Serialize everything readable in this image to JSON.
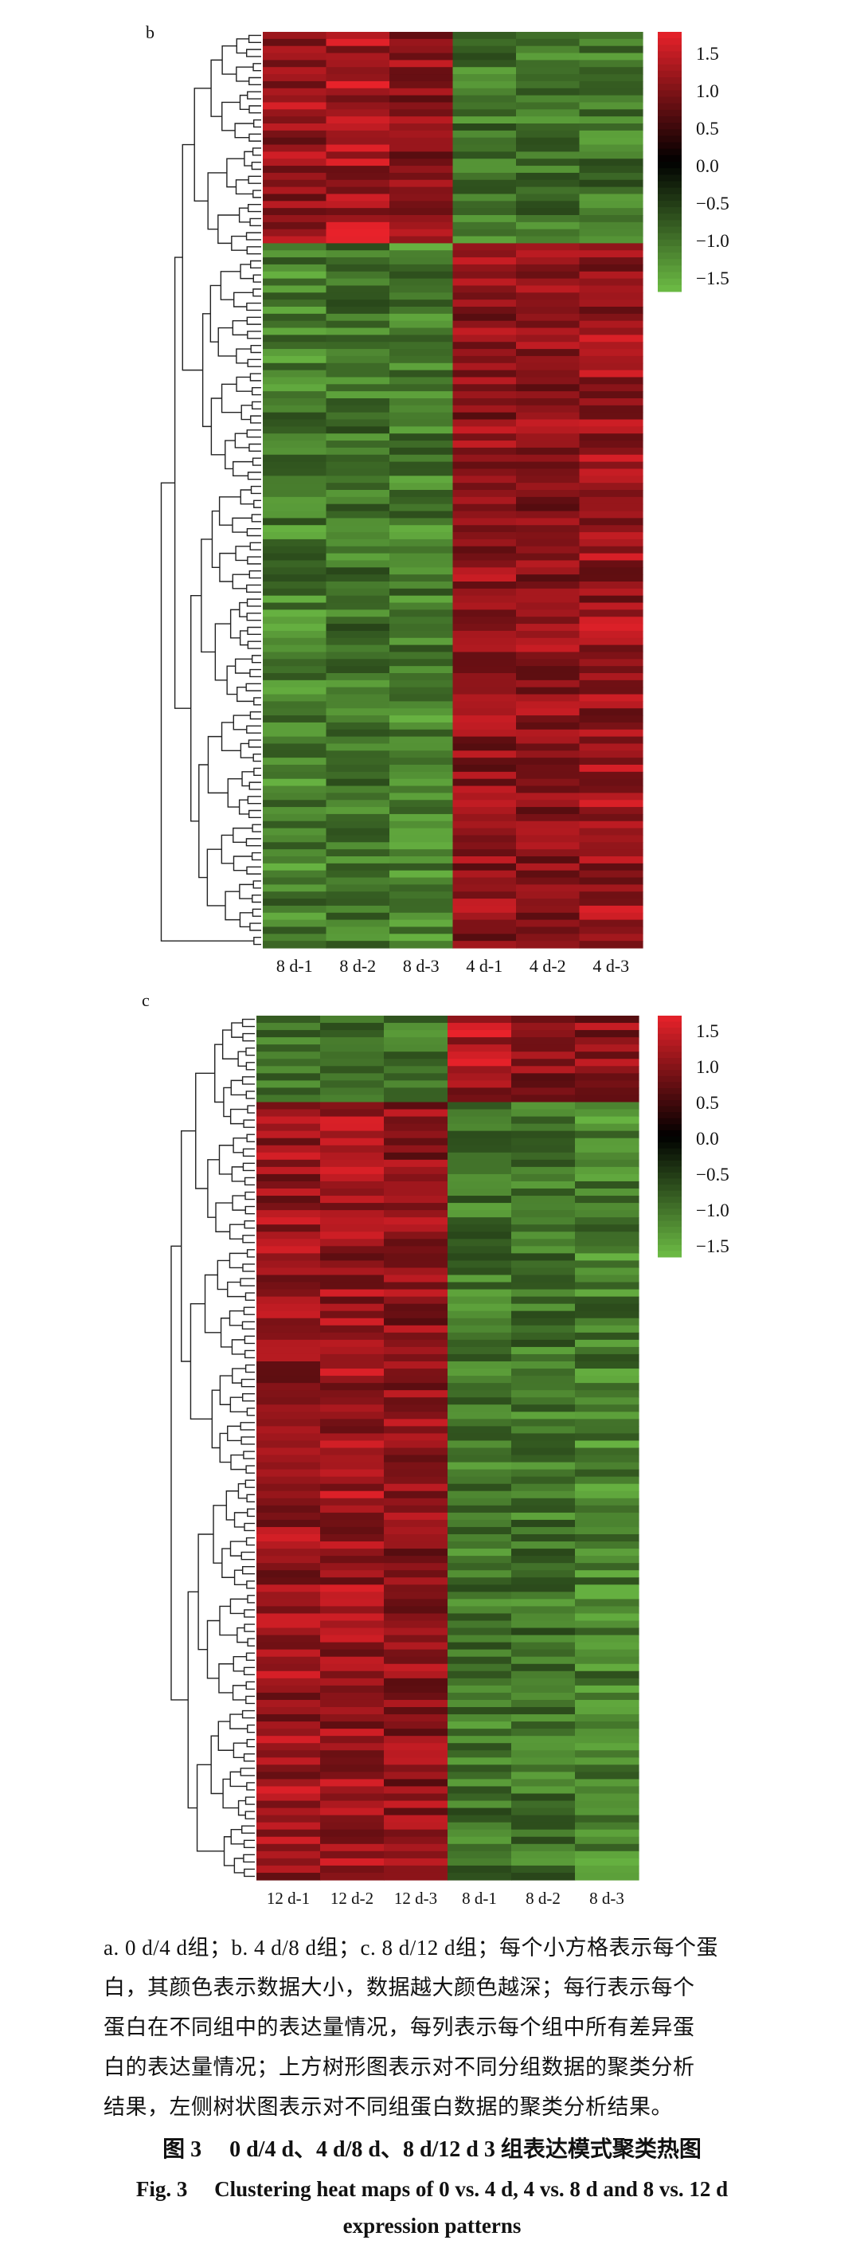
{
  "chart_data": [
    {
      "type": "heatmap",
      "panel": "b",
      "columns": [
        "8 d-1",
        "8 d-2",
        "8 d-3",
        "4 d-1",
        "4 d-2",
        "4 d-3"
      ],
      "colorbar": {
        "ticks": [
          "1.5",
          "1.0",
          "0.5",
          "0.0",
          "−0.5",
          "−1.0",
          "−1.5"
        ],
        "range": [
          -1.5,
          1.5
        ],
        "high_color": "#e8222a",
        "mid_color": "#000000",
        "low_color": "#6dbd45"
      },
      "row_count": 130,
      "row_blocks": [
        {
          "rows": 30,
          "values": [
            1.1,
            1.2,
            1.0,
            -1.0,
            -1.0,
            -1.0
          ]
        },
        {
          "rows": 100,
          "values": [
            -1.1,
            -1.0,
            -1.1,
            1.0,
            1.0,
            1.1
          ]
        }
      ]
    },
    {
      "type": "heatmap",
      "panel": "c",
      "columns": [
        "12 d-1",
        "12 d-2",
        "12 d-3",
        "8 d-1",
        "8 d-2",
        "8 d-3"
      ],
      "colorbar": {
        "ticks": [
          "1.5",
          "1.0",
          "0.5",
          "0.0",
          "−0.5",
          "−1.0",
          "−1.5"
        ],
        "range": [
          -1.5,
          1.5
        ],
        "high_color": "#e8222a",
        "mid_color": "#000000",
        "low_color": "#6dbd45"
      },
      "row_count": 120,
      "row_blocks": [
        {
          "rows": 12,
          "values": [
            -1.0,
            -0.8,
            -1.0,
            1.2,
            1.0,
            1.0
          ]
        },
        {
          "rows": 108,
          "values": [
            1.1,
            1.1,
            1.0,
            -1.0,
            -1.0,
            -1.1
          ]
        }
      ]
    }
  ],
  "panels": {
    "b": {
      "letter": "b"
    },
    "c": {
      "letter": "c"
    }
  },
  "caption": {
    "lines": [
      "a. 0 d/4 d组；b. 4 d/8 d组；c. 8 d/12 d组；每个小方格表示每个蛋",
      "白，其颜色表示数据大小，数据越大颜色越深；每行表示每个",
      "蛋白在不同组中的表达量情况，每列表示每个组中所有差异蛋",
      "白的表达量情况；上方树形图表示对不同分组数据的聚类分析",
      "结果，左侧树状图表示对不同组蛋白数据的聚类分析结果。"
    ],
    "figure_title_cn": "图 3     0 d/4 d、4 d/8 d、8 d/12 d 3 组表达模式聚类热图",
    "figure_title_en_line1": "Fig. 3     Clustering heat maps of 0 vs. 4 d, 4 vs. 8 d and 8 vs. 12 d",
    "figure_title_en_line2": "expression patterns"
  }
}
